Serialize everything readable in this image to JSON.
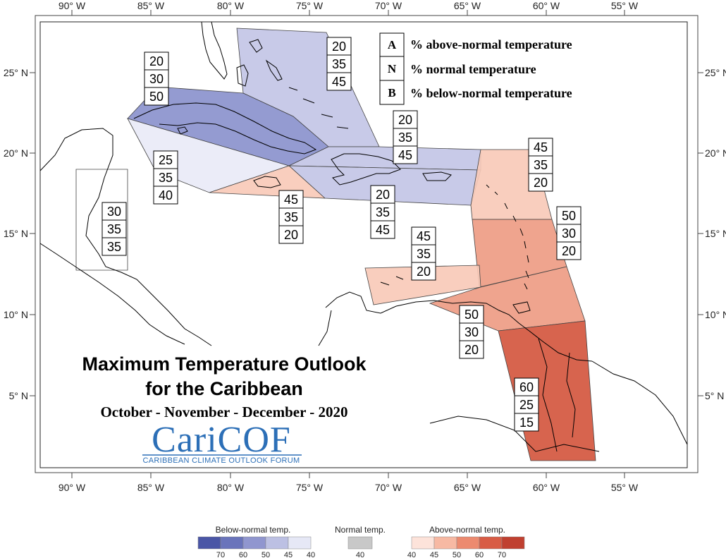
{
  "title": {
    "line1": "Maximum Temperature Outlook",
    "line2": "for the Caribbean",
    "season": "October - November - December - 2020"
  },
  "logo": {
    "name": "CariCOF",
    "tagline": "CARIBBEAN CLIMATE OUTLOOK FORUM"
  },
  "axes": {
    "lon_ticks": [
      "90° W",
      "85° W",
      "80° W",
      "75° W",
      "70° W",
      "65° W",
      "60° W",
      "55° W"
    ],
    "lat_ticks": [
      "25° N",
      "20° N",
      "15° N",
      "10° N",
      "5° N"
    ]
  },
  "key": [
    {
      "letter": "A",
      "text": "% above-normal temperature"
    },
    {
      "letter": "N",
      "text": "% normal temperature"
    },
    {
      "letter": "B",
      "text": "% below-normal temperature"
    }
  ],
  "zones": [
    {
      "id": "bahamas",
      "category": "below",
      "probability": 45,
      "color": "#c3c6e6",
      "values": [
        "20",
        "35",
        "45"
      ]
    },
    {
      "id": "cuba",
      "category": "below",
      "probability": 50,
      "color": "#8b92cd",
      "values": [
        "20",
        "30",
        "50"
      ]
    },
    {
      "id": "cayman-cuba-south",
      "category": "below",
      "probability": 40,
      "color": "#e9eaf7",
      "values": [
        "25",
        "35",
        "40"
      ]
    },
    {
      "id": "hispaniola-north",
      "category": "below",
      "probability": 45,
      "color": "#c3c6e6",
      "values": [
        "20",
        "35",
        "45"
      ]
    },
    {
      "id": "hispaniola-puerto-rico",
      "category": "below",
      "probability": 45,
      "color": "#c3c6e6",
      "values": [
        "20",
        "35",
        "45"
      ]
    },
    {
      "id": "jamaica",
      "category": "above",
      "probability": 45,
      "color": "#f9cab9",
      "values": [
        "45",
        "35",
        "20"
      ]
    },
    {
      "id": "leeward-islands",
      "category": "above",
      "probability": 45,
      "color": "#f9cab9",
      "values": [
        "45",
        "35",
        "20"
      ]
    },
    {
      "id": "windward-islands",
      "category": "above",
      "probability": 50,
      "color": "#ee9c84",
      "values": [
        "50",
        "30",
        "20"
      ]
    },
    {
      "id": "abc-islands",
      "category": "above",
      "probability": 45,
      "color": "#f9cab9",
      "values": [
        "45",
        "35",
        "20"
      ]
    },
    {
      "id": "trinidad-barbados",
      "category": "above",
      "probability": 50,
      "color": "#ee9c84",
      "values": [
        "50",
        "30",
        "20"
      ]
    },
    {
      "id": "guianas",
      "category": "above",
      "probability": 60,
      "color": "#d4573f",
      "values": [
        "60",
        "25",
        "15"
      ]
    },
    {
      "id": "belize",
      "category": "below",
      "probability": 35,
      "color": "#ffffff",
      "values": [
        "30",
        "35",
        "35"
      ]
    }
  ],
  "legend": {
    "below_title": "Below-normal temp.",
    "normal_title": "Normal temp.",
    "above_title": "Above-normal temp.",
    "below": {
      "colors": [
        "#4a56a6",
        "#6a74bb",
        "#9096cf",
        "#bcc0e3",
        "#e6e8f6"
      ],
      "ticks": [
        "70",
        "60",
        "50",
        "45",
        "40"
      ]
    },
    "normal": {
      "colors": [
        "#c8c8c8"
      ],
      "ticks": [
        "40"
      ]
    },
    "above": {
      "colors": [
        "#fde3da",
        "#f7b9a3",
        "#ec8a6f",
        "#d85c45",
        "#c04030"
      ],
      "ticks": [
        "40",
        "45",
        "50",
        "60",
        "70"
      ]
    }
  }
}
